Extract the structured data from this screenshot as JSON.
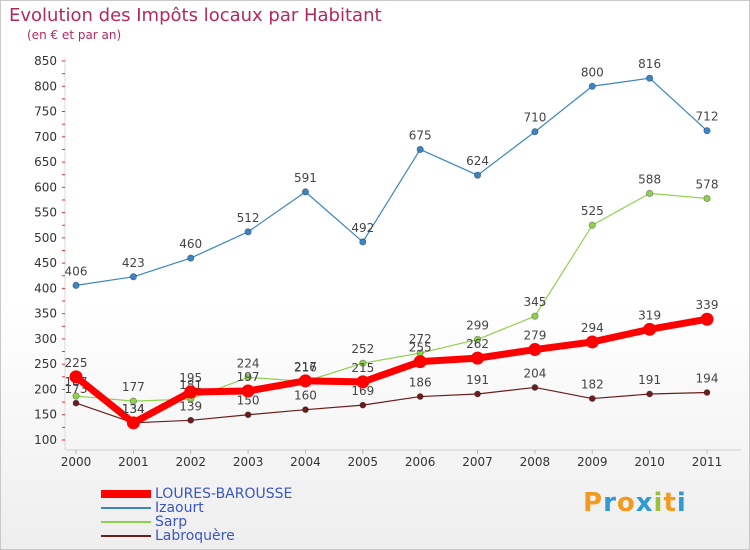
{
  "title": "Evolution des Impôts locaux par Habitant",
  "subtitle": "(en € et par an)",
  "brand": "Proxiti",
  "brand_colors": [
    "#f29a1f",
    "#2e9ad6",
    "#f29a1f",
    "#2e9ad6",
    "#9dc03b",
    "#f29a1f",
    "#2e9ad6"
  ],
  "chart_data": {
    "type": "line",
    "title": "Evolution des Impôts locaux par Habitant",
    "subtitle": "(en € et par an)",
    "x": [
      "2000",
      "2001",
      "2002",
      "2003",
      "2004",
      "2005",
      "2006",
      "2007",
      "2008",
      "2009",
      "2010",
      "2011"
    ],
    "ylim": [
      100,
      850
    ],
    "yticks": [
      100,
      150,
      200,
      250,
      300,
      350,
      400,
      450,
      500,
      550,
      600,
      650,
      700,
      750,
      800,
      850
    ],
    "grid": false,
    "legend_position": "bottom-left",
    "series": [
      {
        "name": "LOURES-BAROUSSE",
        "color": "#ff0000",
        "values": [
          225,
          134,
          195,
          197,
          217,
          215,
          255,
          262,
          279,
          294,
          319,
          339
        ]
      },
      {
        "name": "Izaourt",
        "color": "#3a85c4",
        "values": [
          406,
          423,
          460,
          512,
          591,
          492,
          675,
          624,
          710,
          800,
          816,
          712
        ]
      },
      {
        "name": "Sarp",
        "color": "#8fd14f",
        "values": [
          187,
          177,
          181,
          224,
          216,
          252,
          272,
          299,
          345,
          525,
          588,
          578
        ]
      },
      {
        "name": "Labroquère",
        "color": "#6b1e1e",
        "values": [
          173,
          134,
          139,
          150,
          160,
          169,
          186,
          191,
          204,
          182,
          191,
          194
        ]
      }
    ]
  }
}
